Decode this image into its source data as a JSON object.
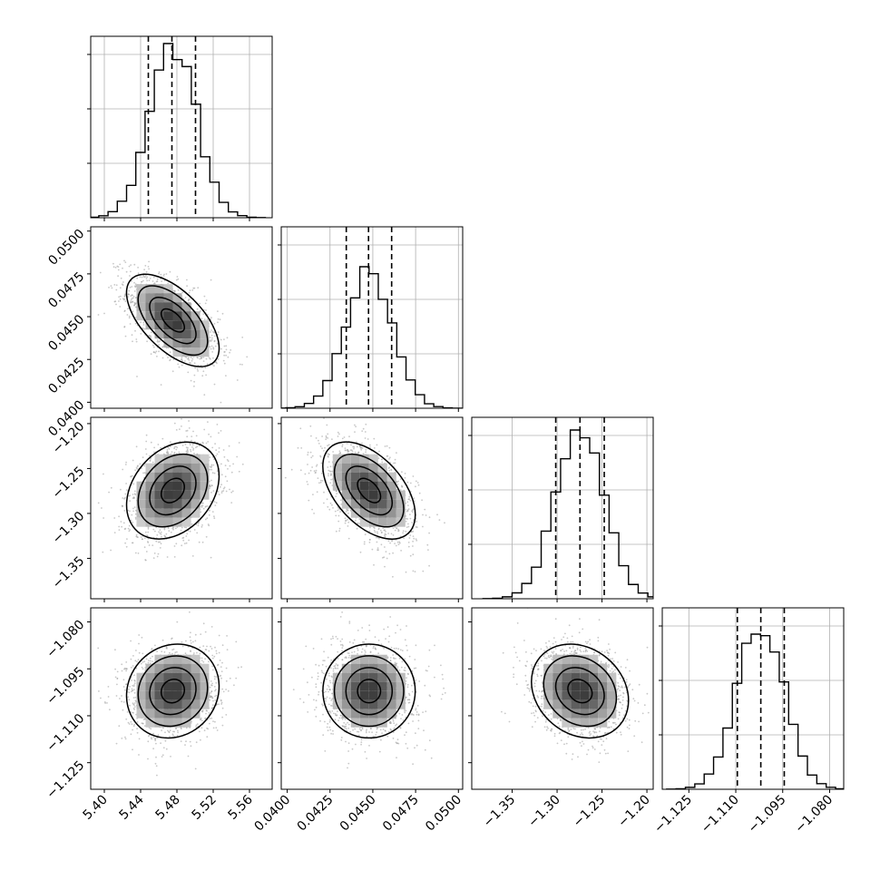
{
  "chart_data": {
    "type": "corner",
    "title": "",
    "grid": true,
    "parameters": [
      {
        "range": [
          5.385,
          5.585
        ],
        "ticks": [
          5.4,
          5.44,
          5.48,
          5.52,
          5.56
        ],
        "tick_labels": [
          "5.40",
          "5.44",
          "5.48",
          "5.52",
          "5.56"
        ],
        "quantiles": [
          5.4485,
          5.4745,
          5.5005
        ],
        "mean": 5.4755,
        "sigma": 0.0255,
        "hist_max_grid_y": 0.96
      },
      {
        "range": [
          0.03965,
          0.05025
        ],
        "ticks": [
          0.04,
          0.0425,
          0.045,
          0.0475,
          0.05
        ],
        "tick_labels": [
          "0.0400",
          "0.0425",
          "0.0450",
          "0.0475",
          "0.0500"
        ],
        "quantiles": [
          0.04345,
          0.04475,
          0.0461
        ],
        "mean": 0.04478,
        "sigma": 0.00135,
        "hist_max_grid_y": 0.78
      },
      {
        "range": [
          -1.395,
          -1.193
        ],
        "ticks": [
          -1.35,
          -1.3,
          -1.25,
          -1.2
        ],
        "tick_labels": [
          "−1.35",
          "−1.30",
          "−1.25",
          "−1.20"
        ],
        "quantiles": [
          -1.3015,
          -1.2745,
          -1.2475
        ],
        "mean": -1.2745,
        "sigma": 0.027,
        "hist_max_grid_y": 0.93
      },
      {
        "range": [
          -1.1335,
          -1.0755
        ],
        "ticks": [
          -1.125,
          -1.11,
          -1.095,
          -1.08
        ],
        "tick_labels": [
          "−1.125",
          "−1.110",
          "−1.095",
          "−1.080"
        ],
        "quantiles": [
          -1.1095,
          -1.102,
          -1.0945
        ],
        "mean": -1.1021,
        "sigma": 0.0075,
        "hist_max_grid_y": 0.92
      }
    ],
    "correlations": {
      "1-0": -0.6,
      "2-0": 0.3,
      "2-1": -0.5,
      "3-0": 0.1,
      "3-1": 0.0,
      "3-2": -0.2
    },
    "hist_bins": 20,
    "colors": {
      "line": "#000000",
      "grid": "#b0b0b0",
      "scatter": "#9a9a9a"
    }
  }
}
